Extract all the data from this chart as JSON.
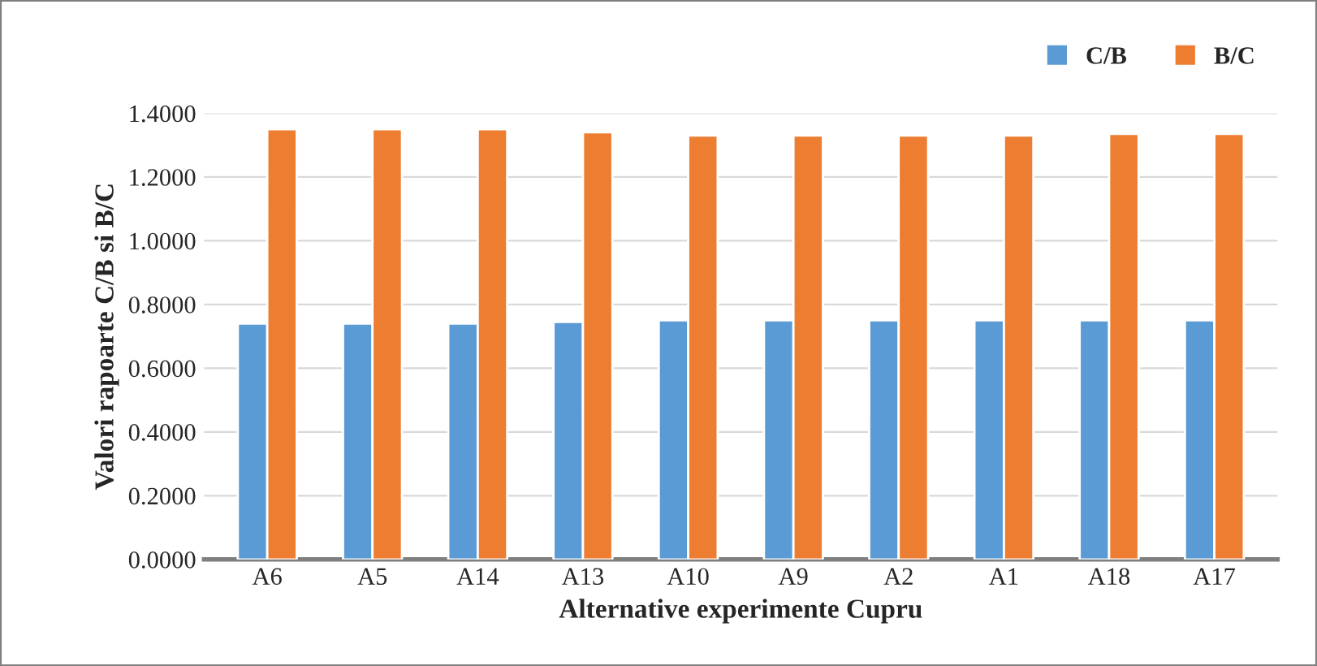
{
  "chart_data": {
    "type": "bar",
    "xlabel": "Alternative experimente Cupru",
    "ylabel": "Valori rapoarte C/B si B/C",
    "categories": [
      "A6",
      "A5",
      "A14",
      "A13",
      "A10",
      "A9",
      "A2",
      "A1",
      "A18",
      "A17"
    ],
    "series": [
      {
        "name": "C/B",
        "color": "#5b9bd5",
        "values": [
          0.74,
          0.74,
          0.74,
          0.745,
          0.75,
          0.75,
          0.75,
          0.75,
          0.75,
          0.75
        ]
      },
      {
        "name": "B/C",
        "color": "#ed7d31",
        "values": [
          1.35,
          1.35,
          1.35,
          1.34,
          1.33,
          1.33,
          1.33,
          1.33,
          1.335,
          1.335
        ]
      }
    ],
    "ylim": [
      0,
      1.4
    ],
    "yticks": [
      {
        "value": 0,
        "label": "0.0000"
      },
      {
        "value": 0.2,
        "label": "0.2000"
      },
      {
        "value": 0.4,
        "label": "0.4000"
      },
      {
        "value": 0.6,
        "label": "0.6000"
      },
      {
        "value": 0.8,
        "label": "0.8000"
      },
      {
        "value": 1.0,
        "label": "1.0000"
      },
      {
        "value": 1.2,
        "label": "1.2000"
      },
      {
        "value": 1.4,
        "label": "1.4000"
      }
    ],
    "grid": "y",
    "legend": "top right"
  }
}
